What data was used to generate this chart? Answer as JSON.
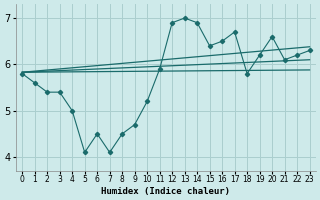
{
  "xlabel": "Humidex (Indice chaleur)",
  "xlim": [
    -0.5,
    23.5
  ],
  "ylim": [
    3.7,
    7.3
  ],
  "yticks": [
    4,
    5,
    6,
    7
  ],
  "xticks": [
    0,
    1,
    2,
    3,
    4,
    5,
    6,
    7,
    8,
    9,
    10,
    11,
    12,
    13,
    14,
    15,
    16,
    17,
    18,
    19,
    20,
    21,
    22,
    23
  ],
  "bg_color": "#ceeaea",
  "grid_color": "#aacece",
  "line_color": "#1a6b6b",
  "zigzag": [
    5.8,
    5.6,
    5.4,
    5.4,
    5.0,
    4.1,
    4.5,
    4.1,
    4.5,
    4.7,
    5.2,
    5.9,
    6.9,
    7.0,
    6.9,
    6.4,
    6.5,
    6.7,
    5.8,
    6.2,
    6.6,
    6.1,
    6.2,
    6.3
  ],
  "trend_lines": [
    {
      "x0": 0,
      "y0": 5.83,
      "x1": 23,
      "y1": 6.38
    },
    {
      "x0": 0,
      "y0": 5.83,
      "x1": 23,
      "y1": 6.1
    },
    {
      "x0": 0,
      "y0": 5.83,
      "x1": 23,
      "y1": 5.88
    }
  ]
}
